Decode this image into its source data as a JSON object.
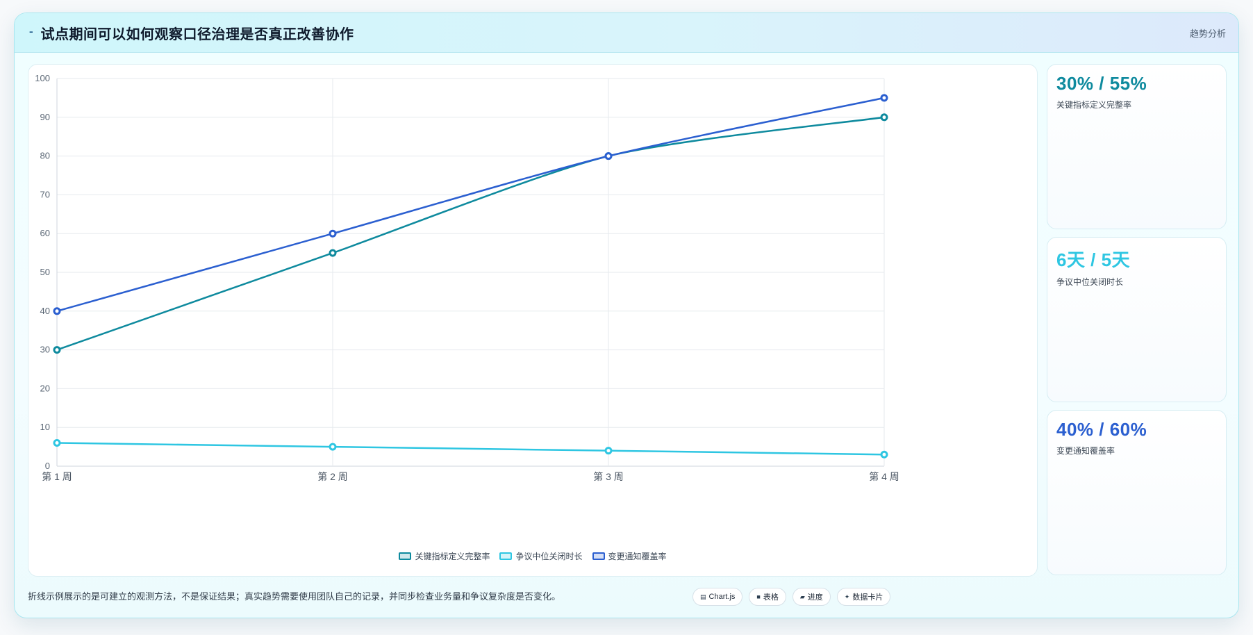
{
  "header": {
    "title": "试点期间可以如何观察口径治理是否真正改善协作",
    "title_icon": "pin-icon",
    "tag": "趋势分析"
  },
  "chart_data": {
    "type": "line",
    "categories": [
      "第 1 周",
      "第 2 周",
      "第 3 周",
      "第 4 周"
    ],
    "ylim": [
      0,
      100
    ],
    "yticks": [
      0,
      10,
      20,
      30,
      40,
      50,
      60,
      70,
      80,
      90,
      100
    ],
    "grid": true,
    "legend_position": "bottom",
    "series": [
      {
        "name": "关键指标定义完整率",
        "values": [
          30,
          55,
          80,
          90
        ],
        "color": "#0e8a9e"
      },
      {
        "name": "争议中位关闭时长",
        "values": [
          6,
          5,
          4,
          3
        ],
        "color": "#2ec6e2"
      },
      {
        "name": "变更通知覆盖率",
        "values": [
          40,
          60,
          80,
          95
        ],
        "color": "#2b5fd0"
      }
    ]
  },
  "stats": [
    {
      "value": "30% / 55%",
      "label": "关键指标定义完整率",
      "color": "#0e8a9e"
    },
    {
      "value": "6天 / 5天",
      "label": "争议中位关闭时长",
      "color": "#2ec6e2"
    },
    {
      "value": "40% / 60%",
      "label": "变更通知覆盖率",
      "color": "#2b5fd0"
    }
  ],
  "footer": {
    "note": "折线示例展示的是可建立的观测方法，不是保证结果；真实趋势需要使用团队自己的记录，并同步检查业务量和争议复杂度是否变化。",
    "chips": [
      {
        "icon": "chart-icon",
        "glyph": "▤",
        "label": "Chart.js"
      },
      {
        "icon": "table-icon",
        "glyph": "■",
        "label": "表格"
      },
      {
        "icon": "progress-icon",
        "glyph": "▰",
        "label": "进度"
      },
      {
        "icon": "data-card-icon",
        "glyph": "✦",
        "label": "数据卡片"
      }
    ]
  }
}
